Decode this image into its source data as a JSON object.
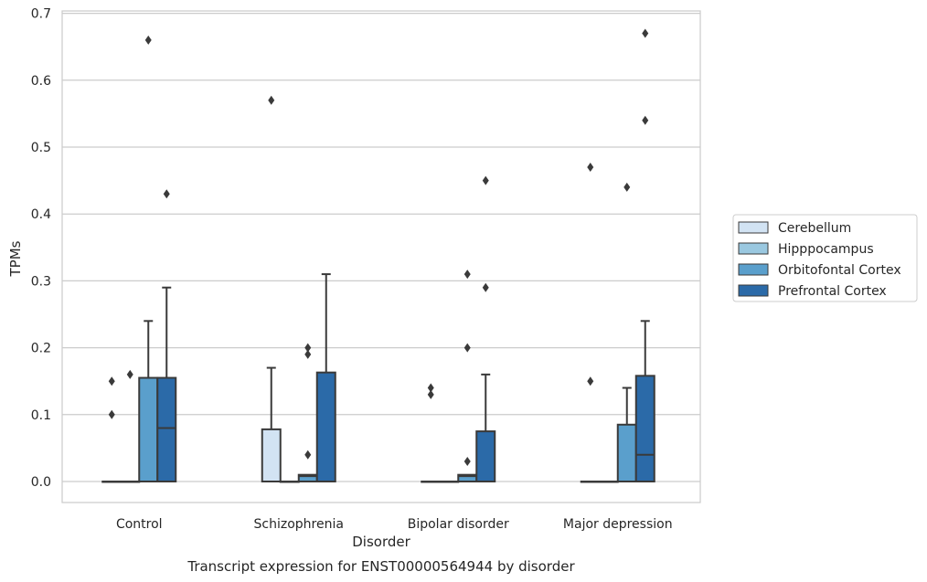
{
  "chart_data": {
    "type": "box",
    "caption": "Transcript expression for ENST00000564944 by disorder",
    "xlabel": "Disorder",
    "ylabel": "TPMs",
    "ylim": [
      -0.032,
      0.705
    ],
    "yticks": [
      "0.0",
      "0.1",
      "0.2",
      "0.3",
      "0.4",
      "0.5",
      "0.6",
      "0.7"
    ],
    "grid": "horizontal",
    "legend_position": "right",
    "categories": [
      "Control",
      "Schizophrenia",
      "Bipolar disorder",
      "Major depression"
    ],
    "series": [
      {
        "name": "Cerebellum",
        "color": "#d2e3f3",
        "boxes": [
          {
            "q1": 0,
            "median": 0,
            "q3": 0,
            "whisker_low": 0,
            "whisker_high": 0,
            "outliers": [
              0.1,
              0.15
            ]
          },
          {
            "q1": 0,
            "median": 0,
            "q3": 0.078,
            "whisker_low": 0,
            "whisker_high": 0.17,
            "outliers": [
              0.57
            ]
          },
          {
            "q1": 0,
            "median": 0,
            "q3": 0,
            "whisker_low": 0,
            "whisker_high": 0,
            "outliers": [
              0.13,
              0.14
            ]
          },
          {
            "q1": 0,
            "median": 0,
            "q3": 0,
            "whisker_low": 0,
            "whisker_high": 0,
            "outliers": [
              0.15,
              0.47
            ]
          }
        ]
      },
      {
        "name": "Hipppocampus",
        "color": "#9ac8e0",
        "boxes": [
          {
            "q1": 0,
            "median": 0,
            "q3": 0,
            "whisker_low": 0,
            "whisker_high": 0,
            "outliers": [
              0.16
            ]
          },
          {
            "q1": 0,
            "median": 0,
            "q3": 0,
            "whisker_low": 0,
            "whisker_high": 0,
            "outliers": []
          },
          {
            "q1": 0,
            "median": 0,
            "q3": 0,
            "whisker_low": 0,
            "whisker_high": 0,
            "outliers": []
          },
          {
            "q1": 0,
            "median": 0,
            "q3": 0,
            "whisker_low": 0,
            "whisker_high": 0,
            "outliers": []
          }
        ]
      },
      {
        "name": "Orbitofontal Cortex",
        "color": "#5a9fcc",
        "boxes": [
          {
            "q1": 0,
            "median": 0,
            "q3": 0.155,
            "whisker_low": 0,
            "whisker_high": 0.24,
            "outliers": [
              0.66
            ]
          },
          {
            "q1": 0,
            "median": 0.008,
            "q3": 0.01,
            "whisker_low": 0,
            "whisker_high": 0.01,
            "outliers": [
              0.04,
              0.19,
              0.2
            ]
          },
          {
            "q1": 0,
            "median": 0.008,
            "q3": 0.01,
            "whisker_low": 0,
            "whisker_high": 0.01,
            "outliers": [
              0.03,
              0.2,
              0.31
            ]
          },
          {
            "q1": 0,
            "median": 0,
            "q3": 0.085,
            "whisker_low": 0,
            "whisker_high": 0.14,
            "outliers": [
              0.44
            ]
          }
        ]
      },
      {
        "name": "Prefrontal Cortex",
        "color": "#2b6aa8",
        "boxes": [
          {
            "q1": 0,
            "median": 0.08,
            "q3": 0.155,
            "whisker_low": 0,
            "whisker_high": 0.29,
            "outliers": [
              0.43
            ]
          },
          {
            "q1": 0,
            "median": 0,
            "q3": 0.163,
            "whisker_low": 0,
            "whisker_high": 0.31,
            "outliers": []
          },
          {
            "q1": 0,
            "median": 0,
            "q3": 0.075,
            "whisker_low": 0,
            "whisker_high": 0.16,
            "outliers": [
              0.29,
              0.45
            ]
          },
          {
            "q1": 0,
            "median": 0.04,
            "q3": 0.158,
            "whisker_low": 0,
            "whisker_high": 0.24,
            "outliers": [
              0.54,
              0.67
            ]
          }
        ]
      }
    ]
  }
}
